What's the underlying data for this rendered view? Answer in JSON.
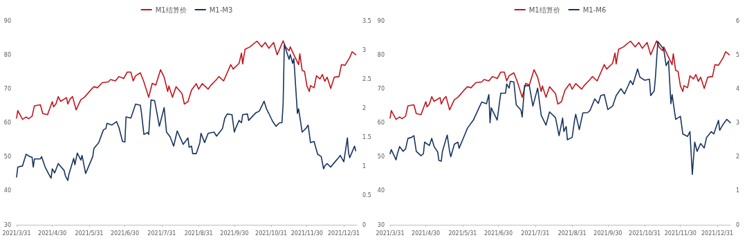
{
  "chart_data": [
    {
      "type": "line",
      "legend": "top",
      "marker": "none",
      "line_style": "solid",
      "grid": false,
      "xlim": [
        "2021-03-31",
        "2022-01-11"
      ],
      "xticks": [
        {
          "value": "2021-03-31",
          "label": "2021/3/31"
        },
        {
          "value": "2021-04-30",
          "label": "2021/4/30"
        },
        {
          "value": "2021-05-31",
          "label": "2021/5/31"
        },
        {
          "value": "2021-06-30",
          "label": "2021/6/30"
        },
        {
          "value": "2021-07-31",
          "label": "2021/7/31"
        },
        {
          "value": "2021-08-31",
          "label": "2021/8/31"
        },
        {
          "value": "2021-09-30",
          "label": "2021/9/30"
        },
        {
          "value": "2021-10-31",
          "label": "2021/10/31"
        },
        {
          "value": "2021-11-30",
          "label": "2021/11/30"
        },
        {
          "value": "2021-12-31",
          "label": "2021/12/31"
        }
      ],
      "ylim": [
        30,
        90
      ],
      "yticks": [
        30,
        40,
        50,
        60,
        70,
        80,
        90
      ],
      "y2lim": [
        0,
        3.5
      ],
      "y2ticks": [
        0,
        0.5,
        1,
        1.5,
        2,
        2.5,
        3,
        3.5
      ],
      "series": [
        {
          "name": "M1结算价",
          "color": "#c0141c",
          "x": [
            "2021-03-31",
            "2021-04-01",
            "2021-04-05",
            "2021-04-08",
            "2021-04-10",
            "2021-04-13",
            "2021-04-15",
            "2021-04-20",
            "2021-04-22",
            "2021-04-26",
            "2021-04-30",
            "2021-05-01",
            "2021-05-03",
            "2021-05-05",
            "2021-05-07",
            "2021-05-12",
            "2021-05-13",
            "2021-05-15",
            "2021-05-17",
            "2021-05-20",
            "2021-05-24",
            "2021-05-27",
            "2021-06-02",
            "2021-06-04",
            "2021-06-07",
            "2021-06-11",
            "2021-06-16",
            "2021-06-18",
            "2021-06-22",
            "2021-06-25",
            "2021-06-29",
            "2021-07-02",
            "2021-07-05",
            "2021-07-07",
            "2021-07-09",
            "2021-07-13",
            "2021-07-16",
            "2021-07-20",
            "2021-07-23",
            "2021-07-26",
            "2021-07-30",
            "2021-08-02",
            "2021-08-05",
            "2021-08-06",
            "2021-08-09",
            "2021-08-12",
            "2021-08-17",
            "2021-08-19",
            "2021-08-22",
            "2021-08-25",
            "2021-08-29",
            "2021-08-31",
            "2021-09-03",
            "2021-09-08",
            "2021-09-10",
            "2021-09-15",
            "2021-09-17",
            "2021-09-21",
            "2021-09-27",
            "2021-09-29",
            "2021-10-04",
            "2021-10-06",
            "2021-10-07",
            "2021-10-09",
            "2021-10-13",
            "2021-10-19",
            "2021-10-23",
            "2021-10-26",
            "2021-10-29",
            "2021-11-02",
            "2021-11-05",
            "2021-11-10",
            "2021-11-12",
            "2021-11-15",
            "2021-11-16",
            "2021-11-19",
            "2021-11-23",
            "2021-11-24",
            "2021-11-26",
            "2021-11-28",
            "2021-11-30",
            "2021-12-02",
            "2021-12-03",
            "2021-12-06",
            "2021-12-08",
            "2021-12-11",
            "2021-12-13",
            "2021-12-15",
            "2021-12-17",
            "2021-12-20",
            "2021-12-23",
            "2021-12-27",
            "2021-12-29",
            "2022-01-01",
            "2022-01-05",
            "2022-01-07",
            "2022-01-10"
          ],
          "values": [
            61.4,
            63.6,
            61.0,
            61.7,
            61.2,
            61.9,
            65.0,
            65.3,
            62.7,
            62.4,
            66.2,
            64.7,
            65.5,
            67.7,
            66.3,
            67.4,
            65.5,
            67.0,
            67.7,
            63.8,
            66.8,
            67.5,
            69.9,
            70.6,
            70.3,
            71.8,
            72.0,
            72.7,
            72.3,
            73.6,
            73.0,
            74.9,
            74.9,
            72.3,
            73.8,
            74.7,
            72.0,
            67.5,
            71.6,
            71.1,
            75.6,
            73.4,
            69.2,
            70.8,
            67.5,
            70.6,
            68.6,
            65.5,
            66.2,
            69.6,
            71.5,
            69.9,
            71.5,
            69.9,
            70.9,
            72.7,
            73.6,
            72.3,
            77.1,
            75.8,
            77.5,
            80.5,
            77.3,
            81.6,
            82.3,
            84.0,
            82.3,
            83.6,
            81.9,
            83.6,
            80.0,
            84.1,
            82.3,
            81.2,
            82.3,
            80.0,
            77.1,
            80.3,
            75.4,
            75.1,
            70.8,
            69.2,
            70.9,
            70.3,
            73.8,
            72.9,
            74.2,
            72.2,
            73.4,
            70.1,
            73.4,
            73.6,
            77.1,
            76.9,
            79.2,
            80.9,
            80.0
          ]
        },
        {
          "name": "M1-M3",
          "color": "#17325f",
          "axis": "y2",
          "x": [
            "2021-03-31",
            "2021-04-01",
            "2021-04-05",
            "2021-04-06",
            "2021-04-08",
            "2021-04-11",
            "2021-04-13",
            "2021-04-14",
            "2021-04-15",
            "2021-04-20",
            "2021-04-21",
            "2021-04-24",
            "2021-04-27",
            "2021-04-29",
            "2021-04-30",
            "2021-05-02",
            "2021-05-05",
            "2021-05-10",
            "2021-05-11",
            "2021-05-13",
            "2021-05-14",
            "2021-05-18",
            "2021-05-19",
            "2021-05-21",
            "2021-05-24",
            "2021-05-25",
            "2021-05-28",
            "2021-06-03",
            "2021-06-04",
            "2021-06-08",
            "2021-06-12",
            "2021-06-14",
            "2021-06-15",
            "2021-06-19",
            "2021-06-23",
            "2021-06-25",
            "2021-06-28",
            "2021-06-30",
            "2021-07-01",
            "2021-07-05",
            "2021-07-07",
            "2021-07-09",
            "2021-07-13",
            "2021-07-14",
            "2021-07-16",
            "2021-07-19",
            "2021-07-20",
            "2021-07-22",
            "2021-07-25",
            "2021-07-29",
            "2021-08-02",
            "2021-08-04",
            "2021-08-07",
            "2021-08-10",
            "2021-08-13",
            "2021-08-18",
            "2021-08-22",
            "2021-08-23",
            "2021-08-25",
            "2021-08-26",
            "2021-08-29",
            "2021-09-01",
            "2021-09-02",
            "2021-09-05",
            "2021-09-08",
            "2021-09-13",
            "2021-09-15",
            "2021-09-20",
            "2021-09-22",
            "2021-09-24",
            "2021-09-28",
            "2021-09-30",
            "2021-10-01",
            "2021-10-04",
            "2021-10-06",
            "2021-10-07",
            "2021-10-11",
            "2021-10-12",
            "2021-10-18",
            "2021-10-21",
            "2021-10-25",
            "2021-10-27",
            "2021-10-29",
            "2021-11-01",
            "2021-11-04",
            "2021-11-07",
            "2021-11-09",
            "2021-11-10",
            "2021-11-11",
            "2021-11-15",
            "2021-11-16",
            "2021-11-18",
            "2021-11-19",
            "2021-11-22",
            "2021-11-23",
            "2021-11-26",
            "2021-11-29",
            "2021-12-01",
            "2021-12-03",
            "2021-12-06",
            "2021-12-09",
            "2021-12-12",
            "2021-12-14",
            "2021-12-15",
            "2021-12-17",
            "2021-12-20",
            "2021-12-24",
            "2021-12-27",
            "2021-12-28",
            "2021-12-31",
            "2022-01-03",
            "2022-01-04",
            "2022-01-05",
            "2022-01-07",
            "2022-01-09",
            "2022-01-10"
          ],
          "values": [
            0.82,
            0.99,
            1.01,
            1.08,
            1.21,
            1.17,
            1.16,
            0.99,
            1.13,
            1.13,
            1.17,
            0.99,
            0.87,
            0.8,
            0.96,
            0.89,
            1.05,
            0.93,
            0.84,
            0.76,
            0.87,
            1.14,
            1.03,
            1.23,
            1.11,
            1.19,
            0.88,
            1.17,
            1.31,
            1.41,
            1.63,
            1.65,
            1.74,
            1.71,
            1.77,
            1.67,
            1.43,
            1.42,
            1.85,
            1.83,
            1.95,
            2.07,
            2.05,
            1.91,
            1.55,
            1.58,
            1.55,
            2.14,
            2.13,
            1.69,
            2.01,
            1.59,
            1.51,
            1.35,
            1.61,
            1.38,
            1.49,
            1.33,
            1.35,
            1.22,
            1.22,
            1.41,
            1.57,
            1.41,
            1.57,
            1.59,
            1.52,
            1.65,
            1.83,
            1.9,
            1.89,
            1.59,
            1.65,
            1.79,
            1.75,
            1.89,
            1.9,
            1.79,
            1.92,
            1.95,
            2.12,
            1.99,
            1.91,
            1.78,
            1.69,
            1.75,
            1.75,
            2.07,
            3.09,
            2.84,
            2.92,
            2.77,
            2.85,
            1.91,
            1.99,
            1.59,
            1.65,
            1.71,
            1.41,
            1.43,
            1.21,
            1.17,
            0.96,
            1.01,
            1.05,
            0.99,
            1.09,
            1.16,
            1.19,
            1.08,
            1.49,
            1.23,
            1.15,
            1.25,
            1.35,
            1.27
          ]
        }
      ]
    },
    {
      "type": "line",
      "legend": "top",
      "marker": "none",
      "line_style": "solid",
      "grid": false,
      "xlim": [
        "2021-03-31",
        "2022-01-11"
      ],
      "xticks": [
        {
          "value": "2021-03-31",
          "label": "2021/3/31"
        },
        {
          "value": "2021-04-30",
          "label": "2021/4/30"
        },
        {
          "value": "2021-05-31",
          "label": "2021/5/31"
        },
        {
          "value": "2021-06-30",
          "label": "2021/6/30"
        },
        {
          "value": "2021-07-31",
          "label": "2021/7/31"
        },
        {
          "value": "2021-08-31",
          "label": "2021/8/31"
        },
        {
          "value": "2021-09-30",
          "label": "2021/9/30"
        },
        {
          "value": "2021-10-31",
          "label": "2021/10/31"
        },
        {
          "value": "2021-11-30",
          "label": "2021/11/30"
        },
        {
          "value": "2021-12-31",
          "label": "2021/12/31"
        }
      ],
      "ylim": [
        30,
        90
      ],
      "yticks": [
        30,
        40,
        50,
        60,
        70,
        80,
        90
      ],
      "y2lim": [
        0,
        6
      ],
      "y2ticks": [
        0,
        1,
        2,
        3,
        4,
        5,
        6
      ],
      "series": [
        {
          "name": "M1结算价",
          "color": "#c0141c",
          "x": [
            "2021-03-31",
            "2021-04-01",
            "2021-04-05",
            "2021-04-08",
            "2021-04-10",
            "2021-04-13",
            "2021-04-15",
            "2021-04-20",
            "2021-04-22",
            "2021-04-26",
            "2021-04-30",
            "2021-05-01",
            "2021-05-03",
            "2021-05-05",
            "2021-05-07",
            "2021-05-12",
            "2021-05-13",
            "2021-05-15",
            "2021-05-17",
            "2021-05-20",
            "2021-05-24",
            "2021-05-27",
            "2021-06-02",
            "2021-06-04",
            "2021-06-07",
            "2021-06-11",
            "2021-06-16",
            "2021-06-18",
            "2021-06-22",
            "2021-06-25",
            "2021-06-29",
            "2021-07-02",
            "2021-07-05",
            "2021-07-07",
            "2021-07-09",
            "2021-07-13",
            "2021-07-16",
            "2021-07-20",
            "2021-07-23",
            "2021-07-26",
            "2021-07-30",
            "2021-08-02",
            "2021-08-05",
            "2021-08-06",
            "2021-08-09",
            "2021-08-12",
            "2021-08-17",
            "2021-08-19",
            "2021-08-22",
            "2021-08-25",
            "2021-08-29",
            "2021-08-31",
            "2021-09-03",
            "2021-09-08",
            "2021-09-10",
            "2021-09-15",
            "2021-09-17",
            "2021-09-21",
            "2021-09-27",
            "2021-09-29",
            "2021-10-04",
            "2021-10-06",
            "2021-10-07",
            "2021-10-09",
            "2021-10-13",
            "2021-10-19",
            "2021-10-23",
            "2021-10-26",
            "2021-10-29",
            "2021-11-02",
            "2021-11-05",
            "2021-11-10",
            "2021-11-12",
            "2021-11-15",
            "2021-11-16",
            "2021-11-19",
            "2021-11-23",
            "2021-11-24",
            "2021-11-26",
            "2021-11-28",
            "2021-11-30",
            "2021-12-02",
            "2021-12-03",
            "2021-12-06",
            "2021-12-08",
            "2021-12-11",
            "2021-12-13",
            "2021-12-15",
            "2021-12-17",
            "2021-12-20",
            "2021-12-23",
            "2021-12-27",
            "2021-12-29",
            "2022-01-01",
            "2022-01-05",
            "2022-01-07",
            "2022-01-10"
          ],
          "values": [
            61.4,
            63.6,
            61.0,
            61.7,
            61.2,
            61.9,
            65.0,
            65.3,
            62.7,
            62.4,
            66.2,
            64.7,
            65.5,
            67.7,
            66.3,
            67.4,
            65.5,
            67.0,
            67.7,
            63.8,
            66.8,
            67.5,
            69.9,
            70.6,
            70.3,
            71.8,
            72.0,
            72.7,
            72.3,
            73.6,
            73.0,
            74.9,
            74.9,
            72.3,
            73.8,
            74.7,
            72.0,
            67.5,
            71.6,
            71.1,
            75.6,
            73.4,
            69.2,
            70.8,
            67.5,
            70.6,
            68.6,
            65.5,
            66.2,
            69.6,
            71.5,
            69.9,
            71.5,
            69.9,
            70.9,
            72.7,
            73.6,
            72.3,
            77.1,
            75.8,
            77.5,
            80.5,
            77.3,
            81.6,
            82.3,
            84.0,
            82.3,
            83.6,
            81.9,
            83.6,
            80.0,
            84.1,
            82.3,
            81.2,
            82.3,
            80.0,
            77.1,
            80.3,
            75.4,
            75.1,
            70.8,
            69.2,
            70.9,
            70.3,
            73.8,
            72.9,
            74.2,
            72.2,
            73.4,
            70.1,
            73.4,
            73.6,
            77.1,
            76.9,
            79.2,
            80.9,
            80.0
          ]
        },
        {
          "name": "M1-M6",
          "color": "#17325f",
          "axis": "y2",
          "x": [
            "2021-03-31",
            "2021-04-01",
            "2021-04-05",
            "2021-04-06",
            "2021-04-08",
            "2021-04-11",
            "2021-04-13",
            "2021-04-15",
            "2021-04-18",
            "2021-04-20",
            "2021-04-22",
            "2021-04-26",
            "2021-04-28",
            "2021-04-29",
            "2021-05-03",
            "2021-05-05",
            "2021-05-07",
            "2021-05-10",
            "2021-05-11",
            "2021-05-13",
            "2021-05-14",
            "2021-05-18",
            "2021-05-20",
            "2021-05-21",
            "2021-05-24",
            "2021-05-27",
            "2021-05-28",
            "2021-06-02",
            "2021-06-04",
            "2021-06-09",
            "2021-06-14",
            "2021-06-16",
            "2021-06-20",
            "2021-06-22",
            "2021-06-23",
            "2021-06-24",
            "2021-06-29",
            "2021-07-02",
            "2021-07-06",
            "2021-07-07",
            "2021-07-09",
            "2021-07-10",
            "2021-07-13",
            "2021-07-15",
            "2021-07-19",
            "2021-07-20",
            "2021-07-22",
            "2021-07-26",
            "2021-07-29",
            "2021-08-02",
            "2021-08-05",
            "2021-08-09",
            "2021-08-12",
            "2021-08-17",
            "2021-08-20",
            "2021-08-23",
            "2021-08-24",
            "2021-08-26",
            "2021-08-27",
            "2021-08-31",
            "2021-09-02",
            "2021-09-03",
            "2021-09-06",
            "2021-09-09",
            "2021-09-13",
            "2021-09-15",
            "2021-09-19",
            "2021-09-22",
            "2021-09-24",
            "2021-09-27",
            "2021-09-30",
            "2021-10-04",
            "2021-10-07",
            "2021-10-11",
            "2021-10-14",
            "2021-10-19",
            "2021-10-21",
            "2021-10-25",
            "2021-10-27",
            "2021-10-31",
            "2021-11-04",
            "2021-11-05",
            "2021-11-08",
            "2021-11-09",
            "2021-11-11",
            "2021-11-16",
            "2021-11-18",
            "2021-11-20",
            "2021-11-22",
            "2021-11-23",
            "2021-11-26",
            "2021-11-30",
            "2021-12-02",
            "2021-12-06",
            "2021-12-08",
            "2021-12-10",
            "2021-12-12",
            "2021-12-14",
            "2021-12-17",
            "2021-12-20",
            "2021-12-22",
            "2021-12-26",
            "2021-12-28",
            "2021-12-30",
            "2022-01-01",
            "2022-01-02",
            "2022-01-05",
            "2022-01-08",
            "2022-01-11"
          ],
          "values": [
            2.09,
            2.21,
            1.91,
            2.07,
            2.3,
            2.16,
            2.23,
            2.54,
            2.57,
            2.62,
            2.16,
            2.03,
            2.09,
            2.43,
            2.33,
            2.54,
            2.3,
            2.14,
            1.89,
            1.87,
            2.16,
            2.64,
            2.16,
            2.0,
            2.37,
            2.43,
            2.25,
            2.67,
            2.84,
            3.08,
            3.46,
            3.61,
            3.56,
            3.83,
            3.0,
            3.44,
            3.08,
            3.87,
            3.87,
            4.14,
            4.02,
            4.22,
            4.2,
            3.53,
            3.37,
            3.17,
            4.09,
            4.09,
            3.49,
            4.02,
            3.22,
            2.93,
            3.32,
            3.15,
            2.62,
            3.14,
            2.74,
            2.89,
            2.5,
            2.57,
            3.07,
            3.25,
            2.8,
            3.29,
            3.3,
            3.36,
            3.7,
            3.57,
            3.8,
            3.83,
            3.39,
            3.49,
            3.8,
            4.0,
            3.85,
            4.24,
            4.12,
            4.58,
            4.34,
            4.25,
            4.28,
            3.8,
            3.94,
            4.34,
            5.39,
            5.16,
            4.68,
            4.82,
            3.56,
            3.83,
            3.1,
            3.19,
            2.67,
            2.6,
            2.74,
            1.48,
            2.43,
            2.16,
            2.39,
            2.26,
            2.57,
            2.74,
            2.67,
            2.87,
            3.07,
            2.78,
            2.96,
            3.1,
            3.0
          ]
        }
      ]
    }
  ]
}
